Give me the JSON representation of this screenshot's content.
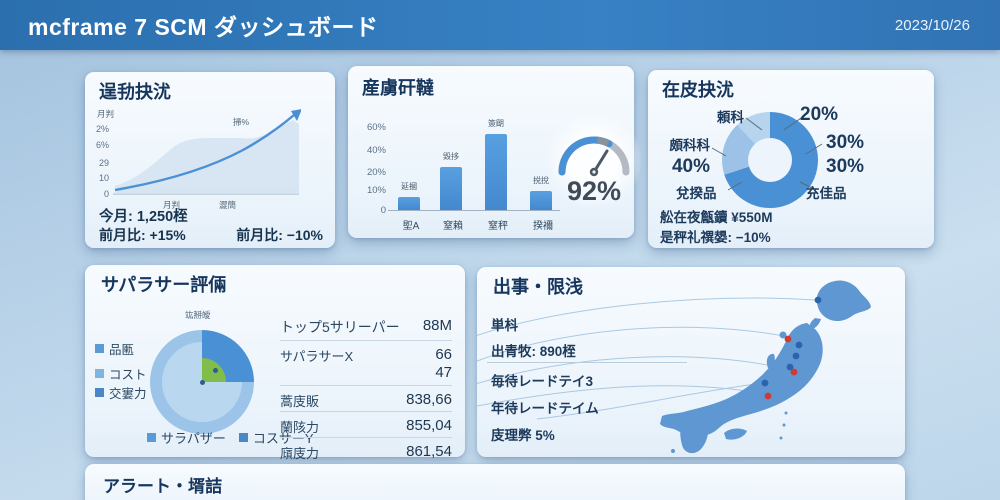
{
  "header": {
    "title": "mcframe 7 SCM ダッシュボード",
    "date": "2023/10/26"
  },
  "accent": {
    "header_blue": "#2e74b5",
    "bar_blue": "#4a90d5",
    "light_blue": "#9cc4e8",
    "lighter_blue": "#b9d6f0",
    "green": "#82bc4a",
    "red_dot": "#d03a31",
    "blue_dot": "#2b63ad",
    "panel_title": "#17365d"
  },
  "operations": {
    "title": "逞劧抉沋",
    "axis_title": "月判",
    "annotation": "掃%",
    "y_ticks": [
      "2%",
      "6%",
      "29",
      "10",
      "0"
    ],
    "x_labels": [
      "月判",
      "澀簡"
    ],
    "kpi_current": "今月: 1,250桎",
    "kpi_prev_up": "前月比: +15%",
    "kpi_prev_down": "前月比: −10%"
  },
  "production": {
    "title": "産虜矸韃",
    "y_ticks": [
      "60%",
      "40%",
      "20%",
      "10%",
      "0"
    ],
    "bars": [
      {
        "name": "延摑",
        "category": "堲A",
        "value": 9
      },
      {
        "name": "毀拸",
        "category": "窒賴",
        "value": 30
      },
      {
        "name": "簽朙",
        "category": "窒秤",
        "value": 53
      },
      {
        "name": "捝挩",
        "category": "揆襧",
        "value": 13
      }
    ],
    "gauge_label": "92%"
  },
  "inventory": {
    "title": "在皮抉沋",
    "label_top_left": "頼科",
    "pct_top_right": "20%",
    "label_left": "頗科科",
    "pct_left": "40%",
    "pct_right_1": "30%",
    "pct_right_2": "30%",
    "label_bottom_left": "兌揆品",
    "label_bottom_right": "充佳品",
    "footer_1": "舩在夜甔鑟 ¥550M",
    "footer_2": "是秤礼禩嫢: −10%",
    "slices": [
      {
        "label": "充佳品",
        "value": 70,
        "color": "#4a90d5"
      },
      {
        "label": "頗科科",
        "value": 18,
        "color": "#9dc2e7"
      },
      {
        "label": "頼科",
        "value": 12,
        "color": "#b7d4ef"
      }
    ]
  },
  "supplier": {
    "title": "サパラサー評倆",
    "chart_label": "竑掰皧",
    "legend_left": [
      {
        "label": "品匭",
        "color": "#5b9bd5"
      },
      {
        "label": "コスト",
        "color": "#7fb3e0"
      },
      {
        "label": "交寠力",
        "color": "#4a86c8"
      }
    ],
    "legend_bottom": [
      {
        "label": "サラパザー",
        "color": "#5b9bd5"
      },
      {
        "label": "コスサーY",
        "color": "#4a86c8"
      }
    ],
    "table": [
      {
        "label": "トップ5サリーパー",
        "value": "88M"
      },
      {
        "label": "サパラサーX",
        "value": "66"
      },
      {
        "label": "",
        "value": "47"
      },
      {
        "label": "蒿庋販",
        "value": "838,66"
      },
      {
        "label": "蘭陔力",
        "value": "855,04"
      },
      {
        "label": "廎庋力",
        "value": "861,54"
      }
    ]
  },
  "shipping": {
    "title": "出事・限浅",
    "line_1": "単枓",
    "line_2": "出青牧: 890桎",
    "line_3": "毎待レードテイ3",
    "line_4": "年待レードテイム",
    "line_5": "庋理弊 5%"
  },
  "alerts": {
    "title": "アラート・壻詰"
  },
  "chart_data": [
    {
      "type": "line",
      "panel": "operations",
      "title": "逞劧抉沋",
      "y_ticks": [
        "2%",
        "6%",
        "29",
        "10",
        "0"
      ],
      "x_labels": [
        "月判",
        "澀簡"
      ],
      "annotation": "掃%",
      "points_rel": [
        [
          0.0,
          0.06
        ],
        [
          0.2,
          0.16
        ],
        [
          0.4,
          0.3
        ],
        [
          0.6,
          0.5
        ],
        [
          0.8,
          0.74
        ],
        [
          1.0,
          0.97
        ]
      ],
      "kpis": {
        "current_month": "1,250桎",
        "mom_up": "+15%",
        "mom_down": "−10%"
      }
    },
    {
      "type": "bar",
      "panel": "production",
      "title": "産虜矸韃",
      "categories": [
        "堲A",
        "窒賴",
        "窒秤",
        "揆襧"
      ],
      "values": [
        9,
        30,
        53,
        13
      ],
      "bar_labels": [
        "延摑",
        "毀拸",
        "簽朙",
        "捝挩"
      ],
      "y_ticks": [
        "60%",
        "40%",
        "20%",
        "10%",
        "0"
      ],
      "ylim": [
        0,
        60
      ],
      "gauge_percent": 92
    },
    {
      "type": "pie",
      "panel": "inventory",
      "donut": true,
      "title": "在皮抉沋",
      "slices": [
        {
          "label": "充佳品",
          "value": 70,
          "color": "#4a90d5"
        },
        {
          "label": "頗科科",
          "value": 18,
          "color": "#9dc2e7"
        },
        {
          "label": "頼科",
          "value": 12,
          "color": "#b7d4ef"
        }
      ],
      "callout_percents": [
        "20%",
        "30%",
        "30%",
        "40%"
      ],
      "total_label": "¥550M",
      "change_label": "−10%"
    },
    {
      "type": "pie",
      "panel": "supplier",
      "title": "サパラサー評倆",
      "inner_color": "#bad7f0",
      "segments": [
        {
          "name": "quadrant",
          "value": 25,
          "color": "#4a90d5"
        },
        {
          "name": "body",
          "value": 75,
          "color": "#9cc4e8"
        },
        {
          "name": "inner-green",
          "value": 25,
          "color": "#82bc4a"
        }
      ]
    }
  ]
}
